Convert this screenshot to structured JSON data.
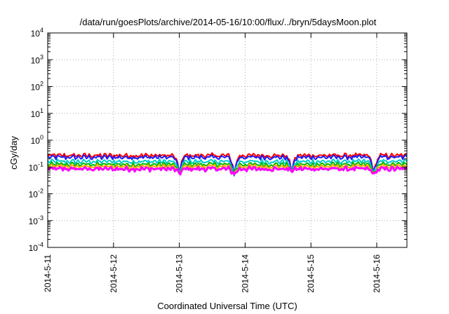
{
  "chart_data": {
    "type": "line",
    "title": "/data/run/goesPlots/archive/2014-05-16/10:00/flux/../bryn/5daysMoon.plot",
    "xlabel": "Coordinated Universal Time (UTC)",
    "ylabel": "cGy/day",
    "x_scale": "time",
    "y_scale": "log",
    "xlim": [
      "2014-05-11T00:00",
      "2014-05-16T11:00"
    ],
    "ylim": [
      0.0001,
      10000
    ],
    "grid": true,
    "x_ticks": [
      "2014-5-11",
      "2014-5-12",
      "2014-5-13",
      "2014-5-14",
      "2014-5-15",
      "2014-5-16"
    ],
    "y_ticks": [
      {
        "value": 0.0001,
        "base": "10",
        "exp": "-4"
      },
      {
        "value": 0.001,
        "base": "10",
        "exp": "-3"
      },
      {
        "value": 0.01,
        "base": "10",
        "exp": "-2"
      },
      {
        "value": 0.1,
        "base": "10",
        "exp": "-1"
      },
      {
        "value": 1,
        "base": "10",
        "exp": "0"
      },
      {
        "value": 10,
        "base": "10",
        "exp": "1"
      },
      {
        "value": 100,
        "base": "10",
        "exp": "2"
      },
      {
        "value": 1000,
        "base": "10",
        "exp": "3"
      },
      {
        "value": 10000,
        "base": "10",
        "exp": "4"
      }
    ],
    "series": [
      {
        "color": "#ff0000",
        "base": 0.27
      },
      {
        "color": "#1a1aff",
        "base": 0.23
      },
      {
        "color": "#00cccc",
        "base": 0.16
      },
      {
        "color": "#00bb00",
        "base": 0.125
      },
      {
        "color": "#ffaa00",
        "base": 0.105
      },
      {
        "color": "#ff00ff",
        "base": 0.085
      }
    ],
    "dips": [
      {
        "x": "2014-05-13T00:00",
        "min": 0.035
      },
      {
        "x": "2014-05-13T20:00",
        "min": 0.032
      },
      {
        "x": "2014-05-14T17:00",
        "min": 0.045
      },
      {
        "x": "2014-05-15T23:00",
        "min": 0.032
      }
    ]
  }
}
